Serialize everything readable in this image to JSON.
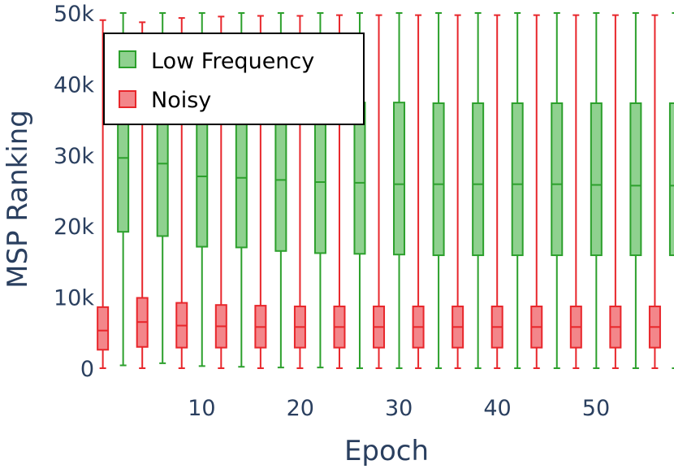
{
  "chart_data": {
    "type": "box",
    "xlabel": "Epoch",
    "ylabel": "MSP Ranking",
    "ylim": [
      0,
      50000
    ],
    "xlim": [
      0,
      57.5
    ],
    "x_ticks": [
      10,
      20,
      30,
      40,
      50
    ],
    "y_ticks": [
      {
        "value": 0,
        "label": "0"
      },
      {
        "value": 10000,
        "label": "10k"
      },
      {
        "value": 20000,
        "label": "20k"
      },
      {
        "value": 30000,
        "label": "30k"
      },
      {
        "value": 40000,
        "label": "40k"
      },
      {
        "value": 50000,
        "label": "50k"
      }
    ],
    "grid": false,
    "legend": "top-left",
    "categories": [
      1,
      5,
      9,
      13,
      17,
      21,
      25,
      29,
      33,
      37,
      41,
      45,
      49,
      53,
      57
    ],
    "series": [
      {
        "name": "Noisy",
        "color": "#e8262b",
        "fill": "#f3868a",
        "boxes": [
          {
            "epoch": 1,
            "min": 0,
            "q1": 2600,
            "median": 5300,
            "q3": 8600,
            "max": 49000
          },
          {
            "epoch": 5,
            "min": 0,
            "q1": 3000,
            "median": 6500,
            "q3": 9900,
            "max": 48700
          },
          {
            "epoch": 9,
            "min": 0,
            "q1": 2900,
            "median": 6000,
            "q3": 9200,
            "max": 49300
          },
          {
            "epoch": 13,
            "min": 0,
            "q1": 2900,
            "median": 5900,
            "q3": 8900,
            "max": 49500
          },
          {
            "epoch": 17,
            "min": 0,
            "q1": 2900,
            "median": 5800,
            "q3": 8800,
            "max": 49600
          },
          {
            "epoch": 21,
            "min": 0,
            "q1": 2900,
            "median": 5800,
            "q3": 8700,
            "max": 49600
          },
          {
            "epoch": 25,
            "min": 0,
            "q1": 2900,
            "median": 5800,
            "q3": 8700,
            "max": 49700
          },
          {
            "epoch": 29,
            "min": 0,
            "q1": 2900,
            "median": 5800,
            "q3": 8700,
            "max": 49700
          },
          {
            "epoch": 33,
            "min": 0,
            "q1": 2900,
            "median": 5800,
            "q3": 8700,
            "max": 49700
          },
          {
            "epoch": 37,
            "min": 0,
            "q1": 2900,
            "median": 5800,
            "q3": 8700,
            "max": 49700
          },
          {
            "epoch": 41,
            "min": 0,
            "q1": 2900,
            "median": 5800,
            "q3": 8700,
            "max": 49700
          },
          {
            "epoch": 45,
            "min": 0,
            "q1": 2900,
            "median": 5800,
            "q3": 8700,
            "max": 49700
          },
          {
            "epoch": 49,
            "min": 0,
            "q1": 2900,
            "median": 5800,
            "q3": 8700,
            "max": 49700
          },
          {
            "epoch": 53,
            "min": 0,
            "q1": 2900,
            "median": 5800,
            "q3": 8700,
            "max": 49700
          },
          {
            "epoch": 57,
            "min": 0,
            "q1": 2900,
            "median": 5800,
            "q3": 8700,
            "max": 49700
          }
        ]
      },
      {
        "name": "Low Frequency",
        "color": "#2ca02c",
        "fill": "#8fd18f",
        "boxes": [
          {
            "epoch": 1,
            "min": 400,
            "q1": 19200,
            "median": 29600,
            "q3": 38000,
            "max": 50000
          },
          {
            "epoch": 5,
            "min": 700,
            "q1": 18600,
            "median": 28800,
            "q3": 37500,
            "max": 50000
          },
          {
            "epoch": 9,
            "min": 300,
            "q1": 17100,
            "median": 27000,
            "q3": 37500,
            "max": 50000
          },
          {
            "epoch": 13,
            "min": 200,
            "q1": 17000,
            "median": 26800,
            "q3": 37500,
            "max": 50000
          },
          {
            "epoch": 17,
            "min": 100,
            "q1": 16500,
            "median": 26500,
            "q3": 37500,
            "max": 50000
          },
          {
            "epoch": 21,
            "min": 100,
            "q1": 16200,
            "median": 26200,
            "q3": 37400,
            "max": 50000
          },
          {
            "epoch": 25,
            "min": 0,
            "q1": 16100,
            "median": 26100,
            "q3": 37400,
            "max": 50000
          },
          {
            "epoch": 29,
            "min": 0,
            "q1": 16000,
            "median": 25900,
            "q3": 37400,
            "max": 50000
          },
          {
            "epoch": 33,
            "min": 0,
            "q1": 15900,
            "median": 25900,
            "q3": 37300,
            "max": 50000
          },
          {
            "epoch": 37,
            "min": 0,
            "q1": 15900,
            "median": 25900,
            "q3": 37300,
            "max": 50000
          },
          {
            "epoch": 41,
            "min": 0,
            "q1": 15900,
            "median": 25900,
            "q3": 37300,
            "max": 50000
          },
          {
            "epoch": 45,
            "min": 0,
            "q1": 15900,
            "median": 25900,
            "q3": 37300,
            "max": 50000
          },
          {
            "epoch": 49,
            "min": 0,
            "q1": 15900,
            "median": 25800,
            "q3": 37300,
            "max": 50000
          },
          {
            "epoch": 53,
            "min": 0,
            "q1": 15900,
            "median": 25700,
            "q3": 37300,
            "max": 50000
          },
          {
            "epoch": 57,
            "min": 0,
            "q1": 15900,
            "median": 25700,
            "q3": 37300,
            "max": 50000
          }
        ]
      }
    ]
  }
}
